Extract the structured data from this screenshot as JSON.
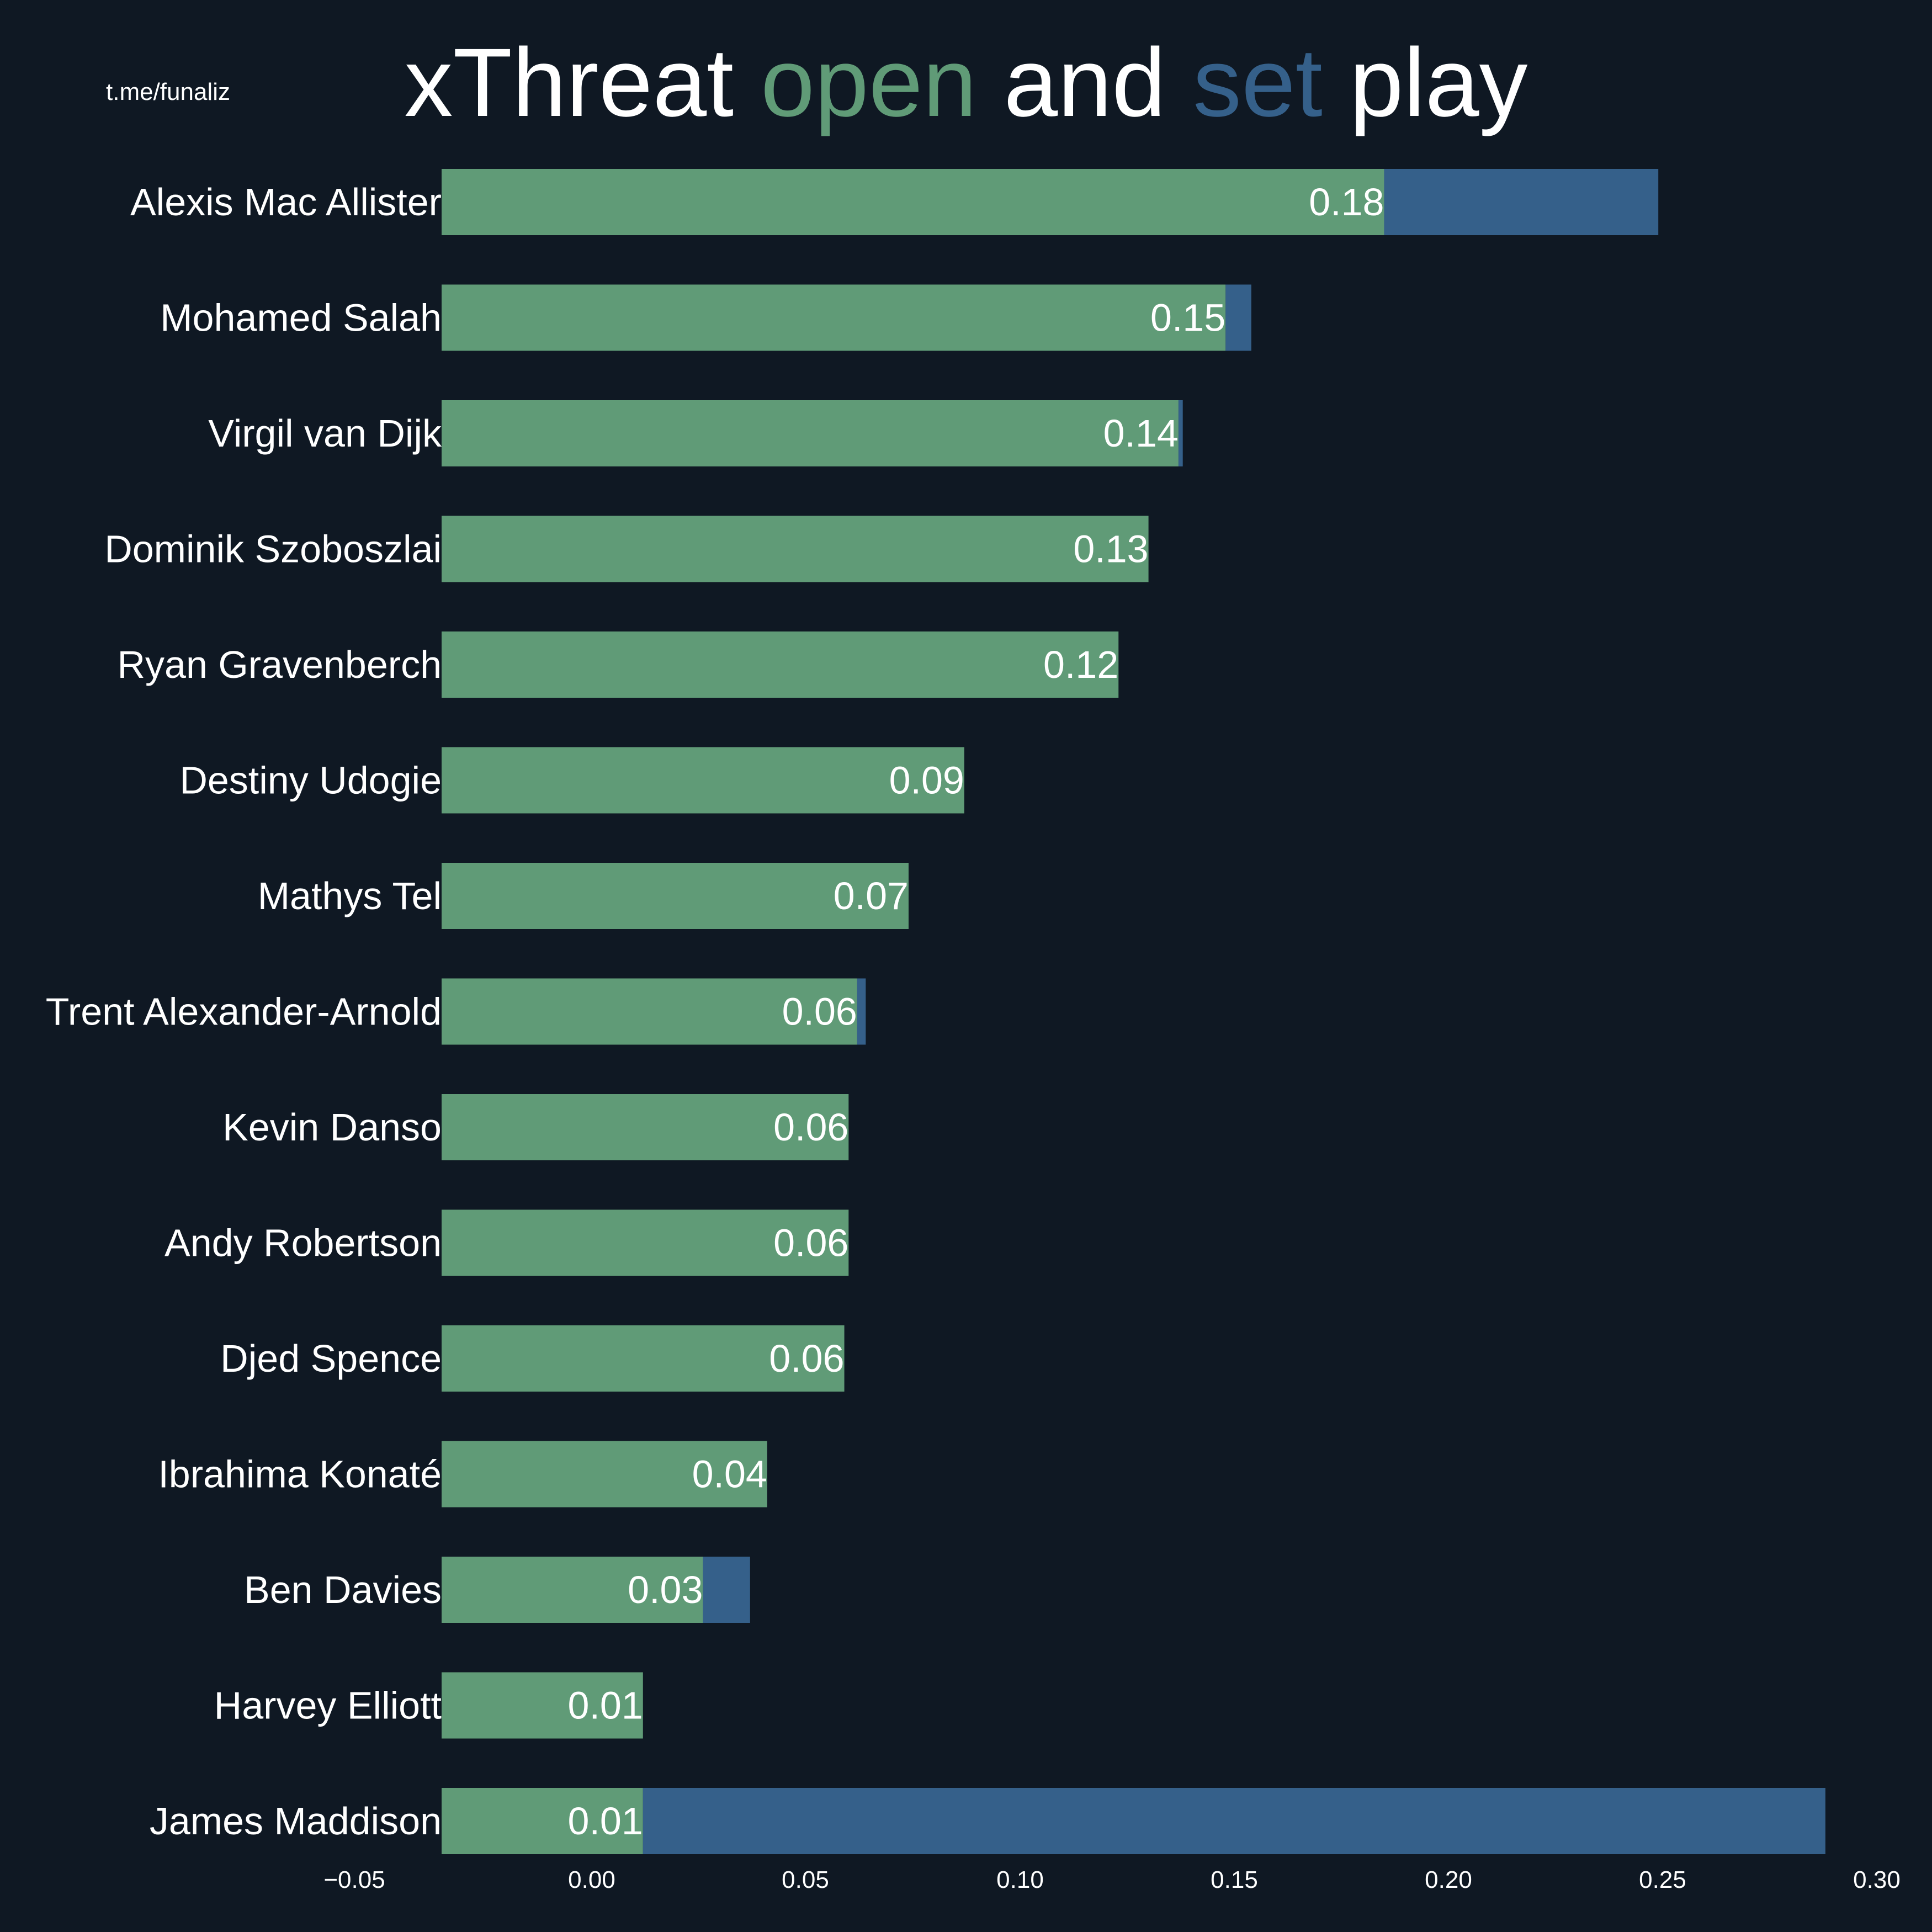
{
  "watermark": "t.me/funaliz",
  "title": {
    "part1": "xThreat ",
    "open_word": "open",
    "part2": " and ",
    "set_word": "set",
    "part3": " play"
  },
  "colors": {
    "background": "#0f1823",
    "open_play": "#609b77",
    "set_play": "#35608a",
    "text": "#ffffff"
  },
  "chart_data": {
    "type": "bar",
    "orientation": "horizontal",
    "stacked": true,
    "title": "xThreat open and set play",
    "xlim": [
      -0.035,
      0.3
    ],
    "x_ticks": [
      -0.05,
      0.0,
      0.05,
      0.1,
      0.15,
      0.2,
      0.25,
      0.3
    ],
    "x_tick_labels": [
      "−0.05",
      "0.00",
      "0.05",
      "0.10",
      "0.15",
      "0.20",
      "0.25",
      "0.30"
    ],
    "grid": false,
    "legend": "none (colour words in title)",
    "categories": [
      "Alexis Mac Allister",
      "Mohamed Salah",
      "Virgil van Dijk",
      "Dominik Szoboszlai",
      "Ryan Gravenberch",
      "Destiny Udogie",
      "Mathys Tel",
      "Trent Alexander-Arnold",
      "Kevin Danso",
      "Andy Robertson",
      "Djed Spence",
      "Ibrahima Konaté",
      "Ben Davies",
      "Harvey Elliott",
      "James Maddison"
    ],
    "series": [
      {
        "name": "open",
        "color": "#609b77",
        "values": [
          0.185,
          0.148,
          0.137,
          0.13,
          0.123,
          0.087,
          0.074,
          0.062,
          0.06,
          0.06,
          0.059,
          0.041,
          0.026,
          0.012,
          0.012
        ]
      },
      {
        "name": "set",
        "color": "#35608a",
        "values": [
          0.064,
          0.006,
          0.001,
          0.0,
          0.0,
          0.0,
          0.0,
          0.002,
          0.0,
          0.0,
          0.0,
          0.0,
          0.011,
          0.0,
          0.276
        ]
      }
    ],
    "data_labels": [
      "0.18",
      "0.15",
      "0.14",
      "0.13",
      "0.12",
      "0.09",
      "0.07",
      "0.06",
      "0.06",
      "0.06",
      "0.06",
      "0.04",
      "0.03",
      "0.01",
      "0.01"
    ]
  }
}
